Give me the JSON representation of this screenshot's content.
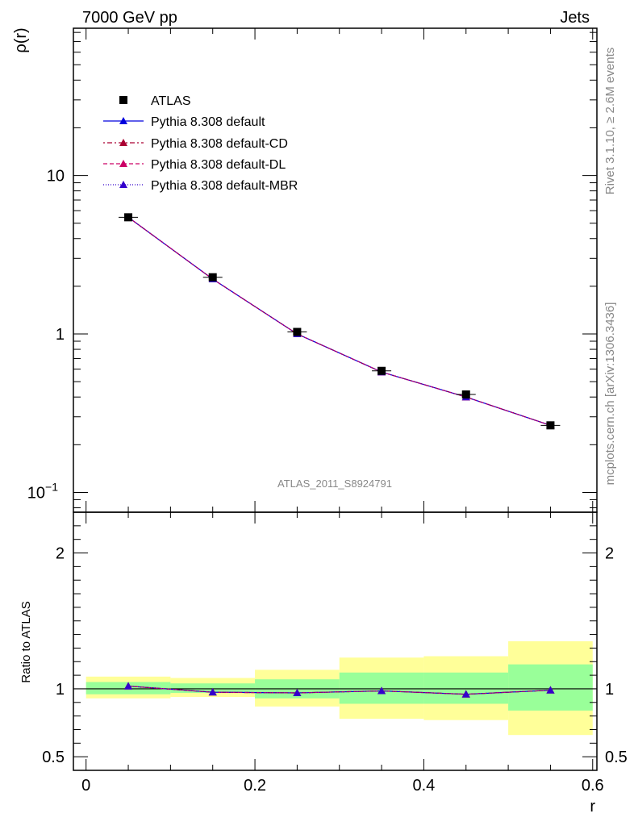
{
  "header": {
    "left": "7000 GeV pp",
    "right": "Jets"
  },
  "side_labels": {
    "rivet": "Rivet 3.1.10, ≥ 2.6M events",
    "source": "mcplots.cern.ch [arXiv:1306.3436]"
  },
  "watermark": "ATLAS_2011_S8924791",
  "chart_data": {
    "type": "line",
    "x": [
      0.05,
      0.15,
      0.25,
      0.35,
      0.45,
      0.55
    ],
    "x_edges": [
      0.0,
      0.1,
      0.2,
      0.3,
      0.4,
      0.5,
      0.6
    ],
    "xlabel": "r",
    "xlim": [
      -0.015,
      0.605
    ],
    "x_ticks": [
      "0",
      "0.2",
      "0.4",
      "0.6"
    ],
    "main": {
      "ylabel": "ρ(r)",
      "yscale": "log",
      "ylim": [
        0.075,
        85
      ],
      "y_ticks": [
        {
          "value": 0.1,
          "base": "10",
          "exp": "−1"
        },
        {
          "value": 1,
          "base": "1",
          "exp": ""
        },
        {
          "value": 10,
          "base": "10",
          "exp": ""
        }
      ],
      "data": {
        "name": "ATLAS",
        "values": [
          5.45,
          2.28,
          1.03,
          0.585,
          0.415,
          0.265
        ]
      },
      "series": [
        {
          "name": "Pythia 8.308 default",
          "values": [
            5.45,
            2.22,
            1.0,
            0.575,
            0.4,
            0.265
          ],
          "color": "#0000dd",
          "dash": "none"
        },
        {
          "name": "Pythia 8.308 default-CD",
          "values": [
            5.45,
            2.22,
            1.0,
            0.575,
            0.4,
            0.265
          ],
          "color": "#aa0033",
          "dash": "2,3,6,3"
        },
        {
          "name": "Pythia 8.308 default-DL",
          "values": [
            5.45,
            2.22,
            1.0,
            0.575,
            0.4,
            0.265
          ],
          "color": "#cc0066",
          "dash": "5,3"
        },
        {
          "name": "Pythia 8.308 default-MBR",
          "values": [
            5.45,
            2.22,
            1.0,
            0.575,
            0.4,
            0.265
          ],
          "color": "#3300cc",
          "dash": "1,2"
        }
      ]
    },
    "ratio": {
      "ylabel": "Ratio to ATLAS",
      "ylim": [
        0.4,
        2.3
      ],
      "y_ticks": [
        "0.5",
        "1",
        "2"
      ],
      "y_tick_values": [
        0.5,
        1,
        2
      ],
      "band_yellow": [
        [
          0.93,
          1.09
        ],
        [
          0.94,
          1.08
        ],
        [
          0.87,
          1.14
        ],
        [
          0.78,
          1.23
        ],
        [
          0.77,
          1.24
        ],
        [
          0.66,
          1.35
        ]
      ],
      "band_green": [
        [
          0.96,
          1.05
        ],
        [
          0.97,
          1.04
        ],
        [
          0.93,
          1.07
        ],
        [
          0.89,
          1.12
        ],
        [
          0.89,
          1.12
        ],
        [
          0.84,
          1.18
        ]
      ],
      "series": [
        {
          "name": "Pythia 8.308 default",
          "values": [
            1.02,
            0.975,
            0.97,
            0.985,
            0.96,
            0.99
          ]
        },
        {
          "name": "Pythia 8.308 default-CD",
          "values": [
            1.02,
            0.975,
            0.97,
            0.985,
            0.96,
            0.99
          ]
        },
        {
          "name": "Pythia 8.308 default-DL",
          "values": [
            1.02,
            0.975,
            0.97,
            0.985,
            0.96,
            0.99
          ]
        },
        {
          "name": "Pythia 8.308 default-MBR",
          "values": [
            1.02,
            0.975,
            0.97,
            0.985,
            0.96,
            0.99
          ]
        }
      ]
    },
    "legend": {
      "placement": "top-left",
      "entries": [
        "ATLAS",
        "Pythia 8.308 default",
        "Pythia 8.308 default-CD",
        "Pythia 8.308 default-DL",
        "Pythia 8.308 default-MBR"
      ]
    },
    "colors": {
      "yellow_band": "#ffff99",
      "green_band": "#99ff99",
      "data_marker": "#000000"
    }
  }
}
